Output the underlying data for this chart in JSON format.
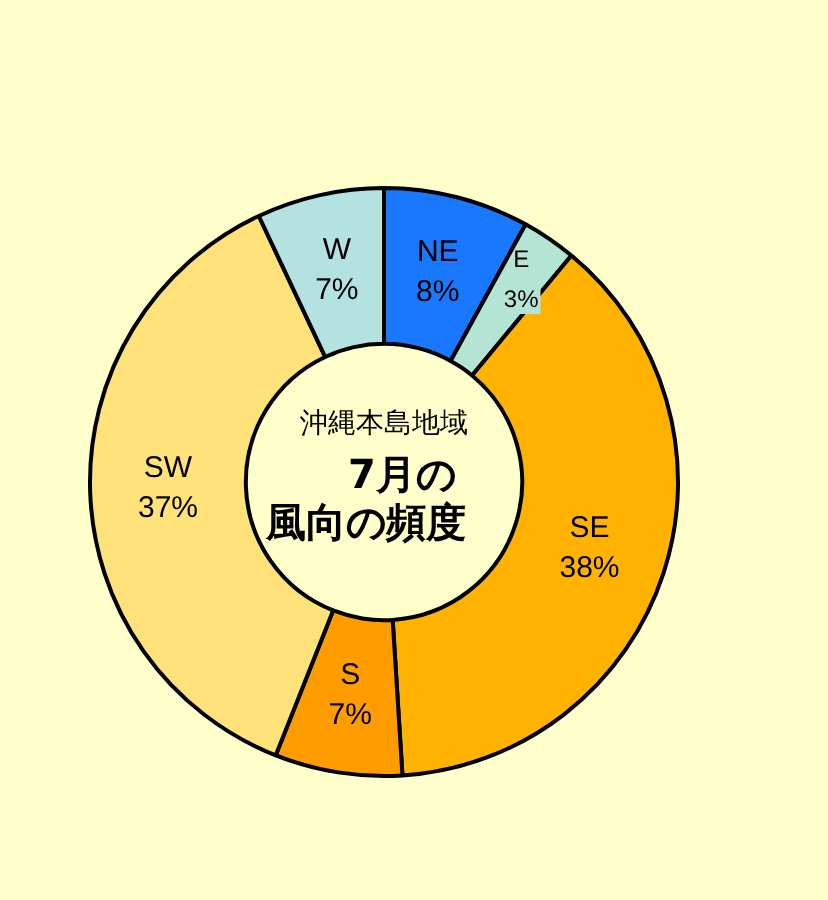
{
  "chart_data": {
    "type": "donut",
    "title": "7月の風向の頻度",
    "subtitle": "沖縄本島地域",
    "categories": [
      "NE",
      "E",
      "SE",
      "S",
      "SW",
      "W"
    ],
    "values": [
      8,
      3,
      38,
      7,
      37,
      7
    ],
    "value_labels": [
      "8%",
      "3%",
      "38%",
      "7%",
      "37%",
      "7%"
    ],
    "colors": [
      "#1a78ff",
      "#b4e4d4",
      "#ffb300",
      "#ff9c00",
      "#ffe27a",
      "#b4e2e0"
    ],
    "legend": false
  }
}
